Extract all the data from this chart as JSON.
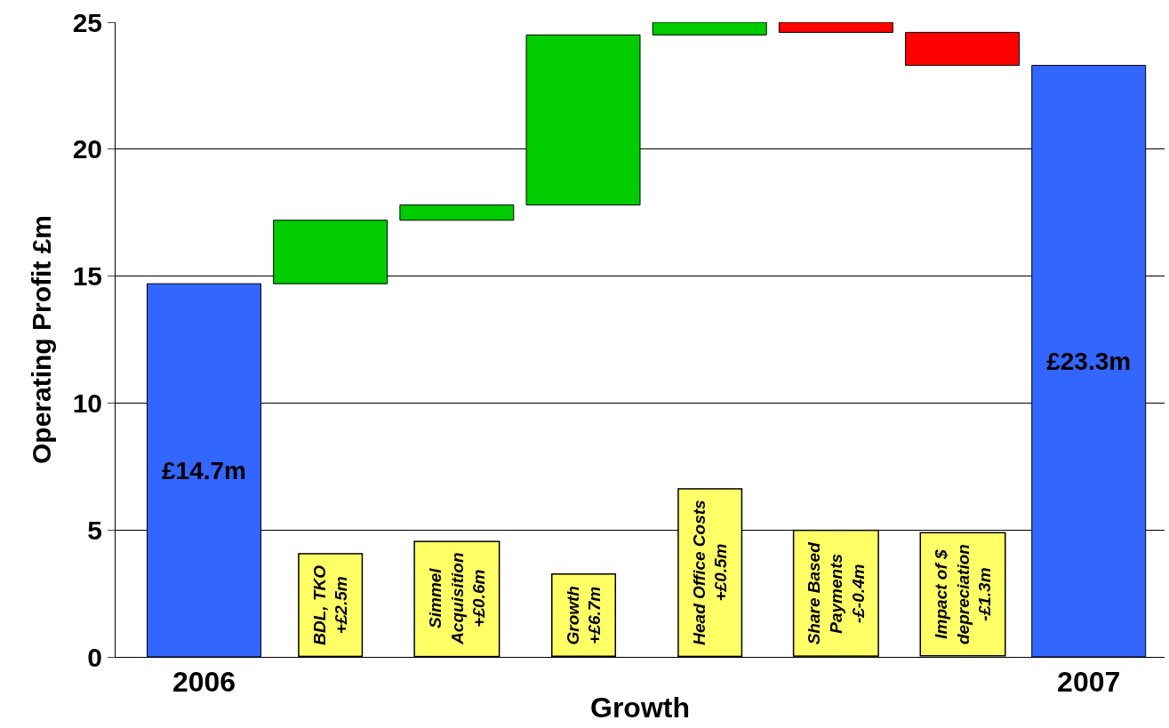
{
  "chart_data": {
    "type": "bar",
    "ylabel": "Operating Profit £m",
    "xlabel": "Growth",
    "categories": [
      "2006",
      "BDL, TKO\n+£2.5m",
      "Simmel\nAcquisition\n+£0.6m",
      "Growth\n+£6.7m",
      "Head Office Costs\n+£0.5m",
      "Share Based\nPayments\n-£-0.4m",
      "Impact of $\ndepreciation\n-£1.3m",
      "2007"
    ],
    "series": [
      {
        "color": "#3366ff",
        "values": [
          14.7,
          null,
          null,
          null,
          null,
          null,
          null,
          23.3
        ],
        "value_labels": [
          "£14.7m",
          null,
          null,
          null,
          null,
          null,
          null,
          "£23.3m"
        ]
      },
      {
        "colors": [
          null,
          "#00cc00",
          "#00cc00",
          "#00cc00",
          "#00cc00",
          "#ff0000",
          "#ff0000",
          null
        ],
        "base": [
          null,
          14.7,
          17.2,
          17.8,
          24.5,
          25.0,
          24.6,
          null
        ],
        "values": [
          null,
          2.5,
          0.6,
          6.7,
          0.5,
          -0.4,
          -1.3,
          null
        ]
      }
    ],
    "ylim": [
      0,
      25
    ],
    "yticks": [
      0,
      5,
      10,
      15,
      20,
      25
    ],
    "grid": "y"
  }
}
